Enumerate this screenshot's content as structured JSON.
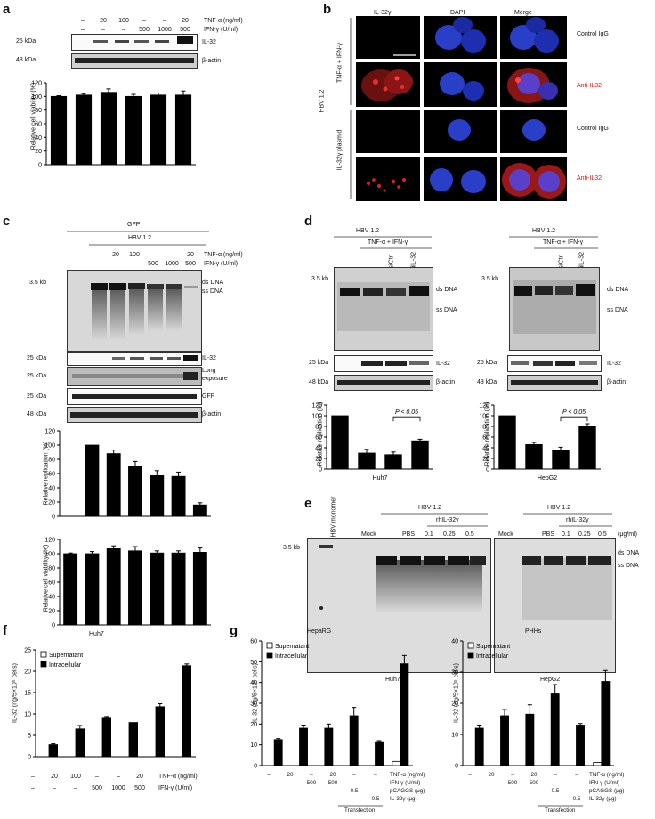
{
  "panels": {
    "a": "a",
    "b": "b",
    "c": "c",
    "d": "d",
    "e": "e",
    "f": "f",
    "g": "g"
  },
  "common": {
    "tnf": "TNF-α (ng/ml)",
    "ifn": "IFN-γ (U/ml)",
    "il32": "IL-32",
    "bactin": "β-actin",
    "kda25": "25 kDa",
    "kda48": "48 kDa",
    "kb35": "3.5 kb",
    "dsdna": "ds DNA",
    "ssdna": "ss DNA",
    "viability": "Relative cell viability (%)",
    "replication": "Relative replication (%)",
    "dash": "–",
    "hbv12": "HBV 1.2",
    "tnf_ifn": "TNF-α + IFN-γ",
    "supernatant": "Supernatant",
    "intracellular": "Intracellular"
  },
  "a": {
    "tnf_vals": [
      "–",
      "20",
      "100",
      "–",
      "–",
      "20"
    ],
    "ifn_vals": [
      "–",
      "–",
      "–",
      "500",
      "1000",
      "500"
    ]
  },
  "b": {
    "cols": [
      "IL-32γ",
      "DAPI",
      "Merge"
    ],
    "group1": "TNF-α + IFN-γ",
    "group2": "IL-32γ plasmid",
    "side": "HBV 1.2",
    "rows": [
      "Control IgG",
      "Anti-IL32",
      "Control IgG",
      "Anti-IL32"
    ]
  },
  "c": {
    "gfp": "GFP",
    "hbv": "HBV 1.2",
    "tnf_vals": [
      "–",
      "–",
      "20",
      "100",
      "–",
      "–",
      "20"
    ],
    "ifn_vals": [
      "–",
      "–",
      "–",
      "–",
      "500",
      "1000",
      "500"
    ],
    "long": "Long",
    "exposure": "exposure",
    "gfp_band": "GFP"
  },
  "d": {
    "left_cell": "Huh7",
    "right_cell": "HepG2",
    "sictrl": "siCtrl",
    "siil32": "siIL-32",
    "pval": "P < 0.05"
  },
  "e": {
    "hbv_monomer": "HBV monomer",
    "mock": "Mock",
    "pbs": "PBS",
    "rhil": "rhIL-32γ",
    "doses": [
      "0.1",
      "0.25",
      "0.5"
    ],
    "unit": "(μg/ml)",
    "left_cell": "Huh7",
    "right_cell": "HepG2"
  },
  "f": {
    "title": "Huh7",
    "ylabel": "IL-32 (ng/5×10⁵ cells)",
    "tnf_vals": [
      "–",
      "20",
      "100",
      "–",
      "–",
      "20"
    ],
    "ifn_vals": [
      "–",
      "–",
      "–",
      "500",
      "1000",
      "500"
    ]
  },
  "g": {
    "left_title": "HepaRG",
    "right_title": "PHHs",
    "ylabel": "IL-32 (ng/5×10⁵ cells)",
    "row_tnf": "TNF-α (ng/ml)",
    "row_ifn": "IFN-γ (U/ml)",
    "row_pc": "pCAGGS (μg)",
    "row_il": "IL-32γ (μg)",
    "tnf_vals": [
      "–",
      "20",
      "–",
      "20",
      "–",
      "–"
    ],
    "ifn_vals": [
      "–",
      "–",
      "500",
      "500",
      "–",
      "–"
    ],
    "pc_vals": [
      "–",
      "–",
      "–",
      "–",
      "0.5",
      "–"
    ],
    "il_vals": [
      "–",
      "–",
      "–",
      "–",
      "–",
      "0.5"
    ],
    "transfection": "Transfection"
  },
  "chart_data": [
    {
      "id": "a-viability",
      "type": "bar",
      "ylabel": "Relative cell viability (%)",
      "ylim": [
        0,
        120
      ],
      "categories": [
        "1",
        "2",
        "3",
        "4",
        "5",
        "6"
      ],
      "values": [
        100,
        102,
        106,
        100,
        102,
        102
      ],
      "errors": [
        1,
        2,
        5,
        3,
        3,
        6
      ]
    },
    {
      "id": "c-replication",
      "type": "bar",
      "ylabel": "Relative replication (%)",
      "ylim": [
        0,
        120
      ],
      "categories": [
        "1",
        "2",
        "3",
        "4",
        "5",
        "6",
        "7"
      ],
      "values": [
        0,
        100,
        88,
        70,
        57,
        56,
        16
      ],
      "errors": [
        0,
        0,
        5,
        7,
        7,
        6,
        3
      ]
    },
    {
      "id": "c-viability",
      "type": "bar",
      "ylabel": "Relative cell viability (%)",
      "ylim": [
        0,
        120
      ],
      "categories": [
        "1",
        "2",
        "3",
        "4",
        "5",
        "6",
        "7"
      ],
      "values": [
        100,
        100,
        107,
        104,
        101,
        101,
        102
      ],
      "errors": [
        1,
        3,
        4,
        6,
        3,
        3,
        6
      ]
    },
    {
      "id": "d-huh7",
      "type": "bar",
      "ylabel": "Relative replication (%)",
      "ylim": [
        0,
        120
      ],
      "xlabel": "Huh7",
      "categories": [
        "1",
        "2",
        "3",
        "4"
      ],
      "values": [
        100,
        30,
        27,
        53
      ],
      "errors": [
        0,
        7,
        5,
        3
      ]
    },
    {
      "id": "d-hepg2",
      "type": "bar",
      "ylabel": "Relative replication (%)",
      "ylim": [
        0,
        120
      ],
      "xlabel": "HepG2",
      "categories": [
        "1",
        "2",
        "3",
        "4"
      ],
      "values": [
        100,
        46,
        35,
        80
      ],
      "errors": [
        0,
        4,
        6,
        5
      ]
    },
    {
      "id": "f-huh7",
      "type": "bar",
      "title": "Huh7",
      "ylabel": "IL-32 (ng/5×10⁵ cells)",
      "ylim": [
        0,
        25
      ],
      "categories": [
        "1",
        "2",
        "3",
        "4",
        "5",
        "6"
      ],
      "series": [
        {
          "name": "Supernatant",
          "values": [
            0,
            0,
            0,
            0,
            0,
            0
          ]
        },
        {
          "name": "Intracellular",
          "values": [
            2.8,
            6.5,
            9.2,
            8,
            11.7,
            21.3
          ],
          "errors": [
            0.2,
            0.8,
            0.2,
            0,
            0.7,
            0.4
          ]
        }
      ]
    },
    {
      "id": "g-heparg",
      "type": "bar",
      "title": "HepaRG",
      "ylabel": "IL-32 (ng/5×10⁵ cells)",
      "ylim": [
        0,
        60
      ],
      "categories": [
        "1",
        "2",
        "3",
        "4",
        "5",
        "6"
      ],
      "series": [
        {
          "name": "Supernatant",
          "values": [
            0,
            0,
            0,
            0,
            0,
            2
          ]
        },
        {
          "name": "Intracellular",
          "values": [
            12.5,
            18,
            18,
            24,
            11.5,
            49
          ],
          "errors": [
            0.5,
            1.5,
            2,
            4,
            0.5,
            4
          ]
        }
      ]
    },
    {
      "id": "g-phhs",
      "type": "bar",
      "title": "PHHs",
      "ylabel": "IL-32 (ng/5×10⁵ cells)",
      "ylim": [
        0,
        40
      ],
      "categories": [
        "1",
        "2",
        "3",
        "4",
        "5",
        "6"
      ],
      "series": [
        {
          "name": "Supernatant",
          "values": [
            0,
            0,
            0,
            0,
            0,
            1
          ]
        },
        {
          "name": "Intracellular",
          "values": [
            12,
            16,
            16.5,
            23,
            13,
            27
          ],
          "errors": [
            1,
            2,
            3,
            3,
            0.5,
            3.5
          ]
        }
      ]
    }
  ]
}
